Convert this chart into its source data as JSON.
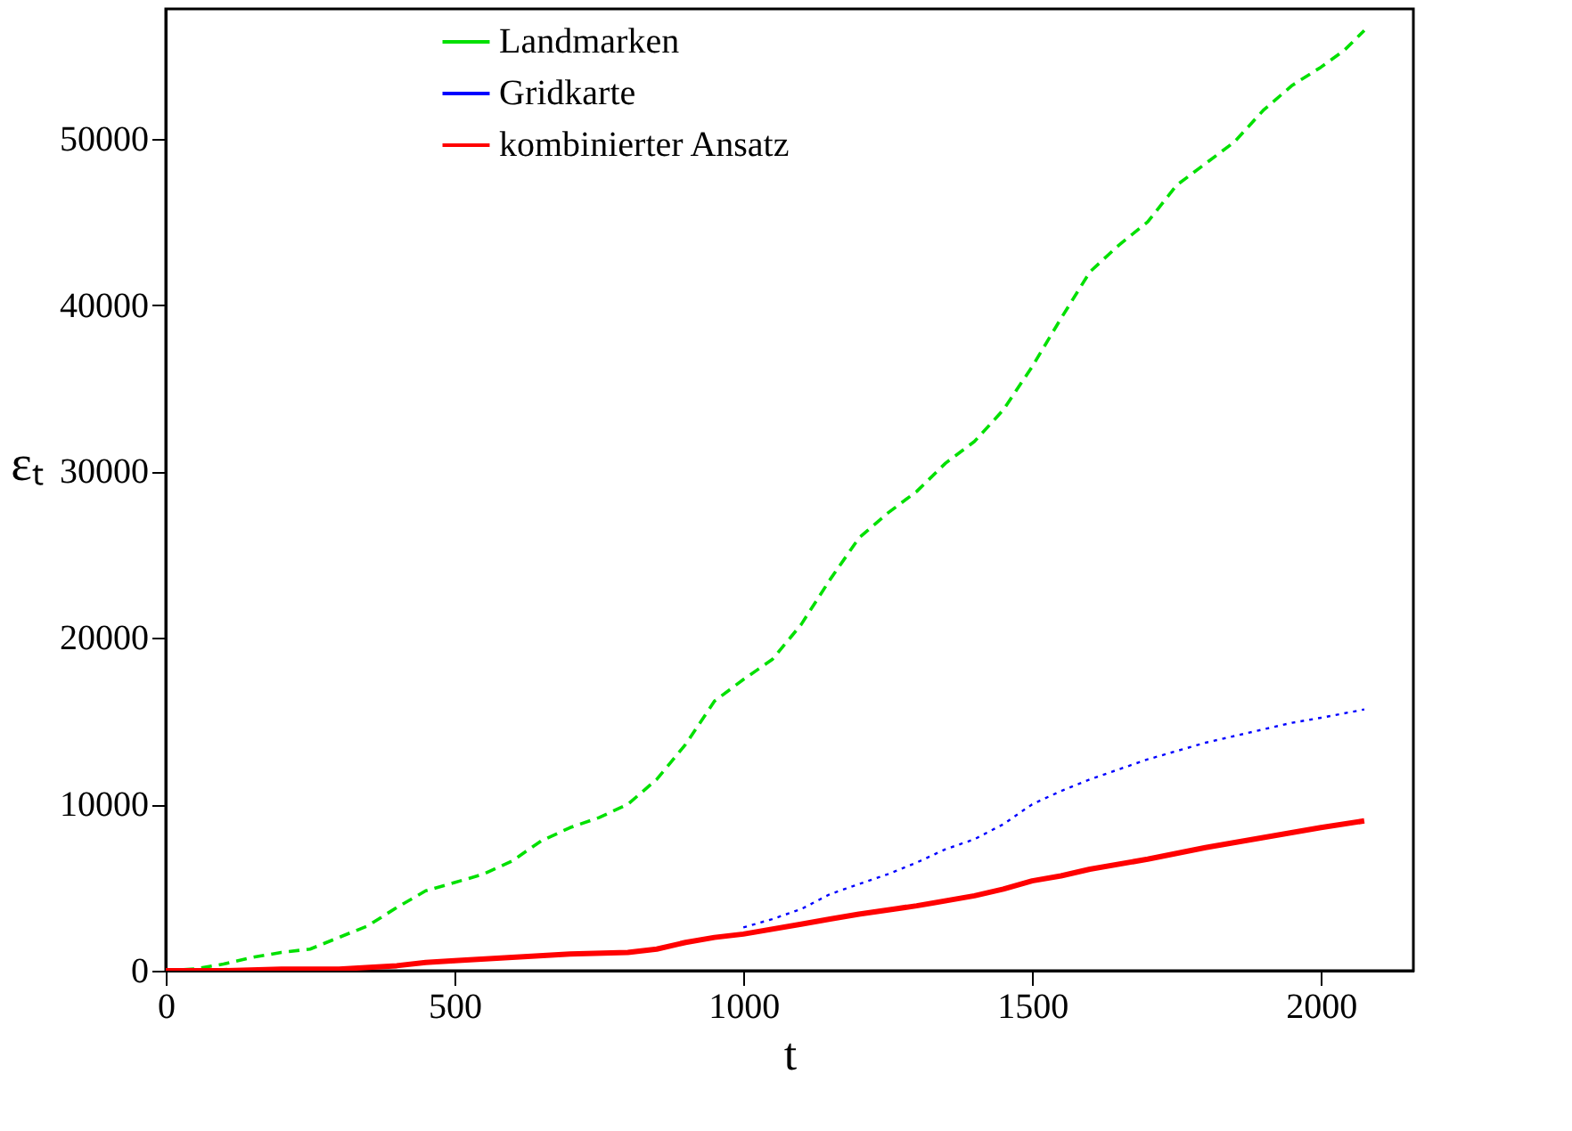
{
  "chart_data": {
    "type": "line",
    "xlabel": "t",
    "ylabel": "εₜ",
    "xlim": [
      0,
      2160
    ],
    "xticks": [
      0,
      500,
      1000,
      1500,
      2000
    ],
    "ylim": [
      0,
      57800
    ],
    "yticks": [
      0,
      10000,
      20000,
      30000,
      40000,
      50000
    ],
    "grid": false,
    "legend": "top",
    "marker": "none",
    "series": [
      {
        "name": "Landmarken",
        "color": "#00e000",
        "line_style": "dashed",
        "x": [
          0,
          50,
          100,
          150,
          200,
          250,
          300,
          350,
          400,
          450,
          500,
          550,
          600,
          650,
          700,
          750,
          800,
          850,
          900,
          950,
          1000,
          1050,
          1100,
          1150,
          1200,
          1250,
          1300,
          1350,
          1400,
          1450,
          1500,
          1550,
          1600,
          1650,
          1700,
          1750,
          1800,
          1850,
          1900,
          1950,
          2000,
          2040,
          2075
        ],
        "values": [
          0,
          100,
          400,
          800,
          1100,
          1300,
          2000,
          2700,
          3800,
          4800,
          5300,
          5800,
          6600,
          7800,
          8600,
          9200,
          10000,
          11500,
          13600,
          16200,
          17500,
          18700,
          20800,
          23500,
          26000,
          27500,
          28800,
          30500,
          31800,
          33700,
          36300,
          39200,
          42000,
          43600,
          45000,
          47200,
          48500,
          49800,
          51700,
          53200,
          54300,
          55300,
          56500
        ]
      },
      {
        "name": "Gridkarte",
        "color": "#0000ff",
        "line_style": "dotted",
        "x": [
          1000,
          1050,
          1100,
          1150,
          1200,
          1250,
          1300,
          1350,
          1400,
          1450,
          1500,
          1550,
          1600,
          1650,
          1700,
          1750,
          1800,
          1850,
          1900,
          1950,
          2000,
          2075
        ],
        "values": [
          2600,
          3100,
          3700,
          4600,
          5200,
          5800,
          6500,
          7300,
          7900,
          8800,
          10000,
          10800,
          11500,
          12100,
          12700,
          13200,
          13700,
          14100,
          14500,
          14900,
          15200,
          15700
        ]
      },
      {
        "name": "kombinierter Ansatz",
        "color": "#ff0000",
        "line_style": "solid",
        "x": [
          0,
          100,
          200,
          300,
          400,
          450,
          500,
          600,
          700,
          800,
          850,
          900,
          950,
          1000,
          1100,
          1150,
          1200,
          1300,
          1400,
          1450,
          1500,
          1550,
          1600,
          1700,
          1800,
          1900,
          2000,
          2075
        ],
        "values": [
          0,
          0,
          100,
          100,
          300,
          500,
          600,
          800,
          1000,
          1100,
          1300,
          1700,
          2000,
          2200,
          2800,
          3100,
          3400,
          3900,
          4500,
          4900,
          5400,
          5700,
          6100,
          6700,
          7400,
          8000,
          8600,
          9000
        ]
      }
    ]
  }
}
